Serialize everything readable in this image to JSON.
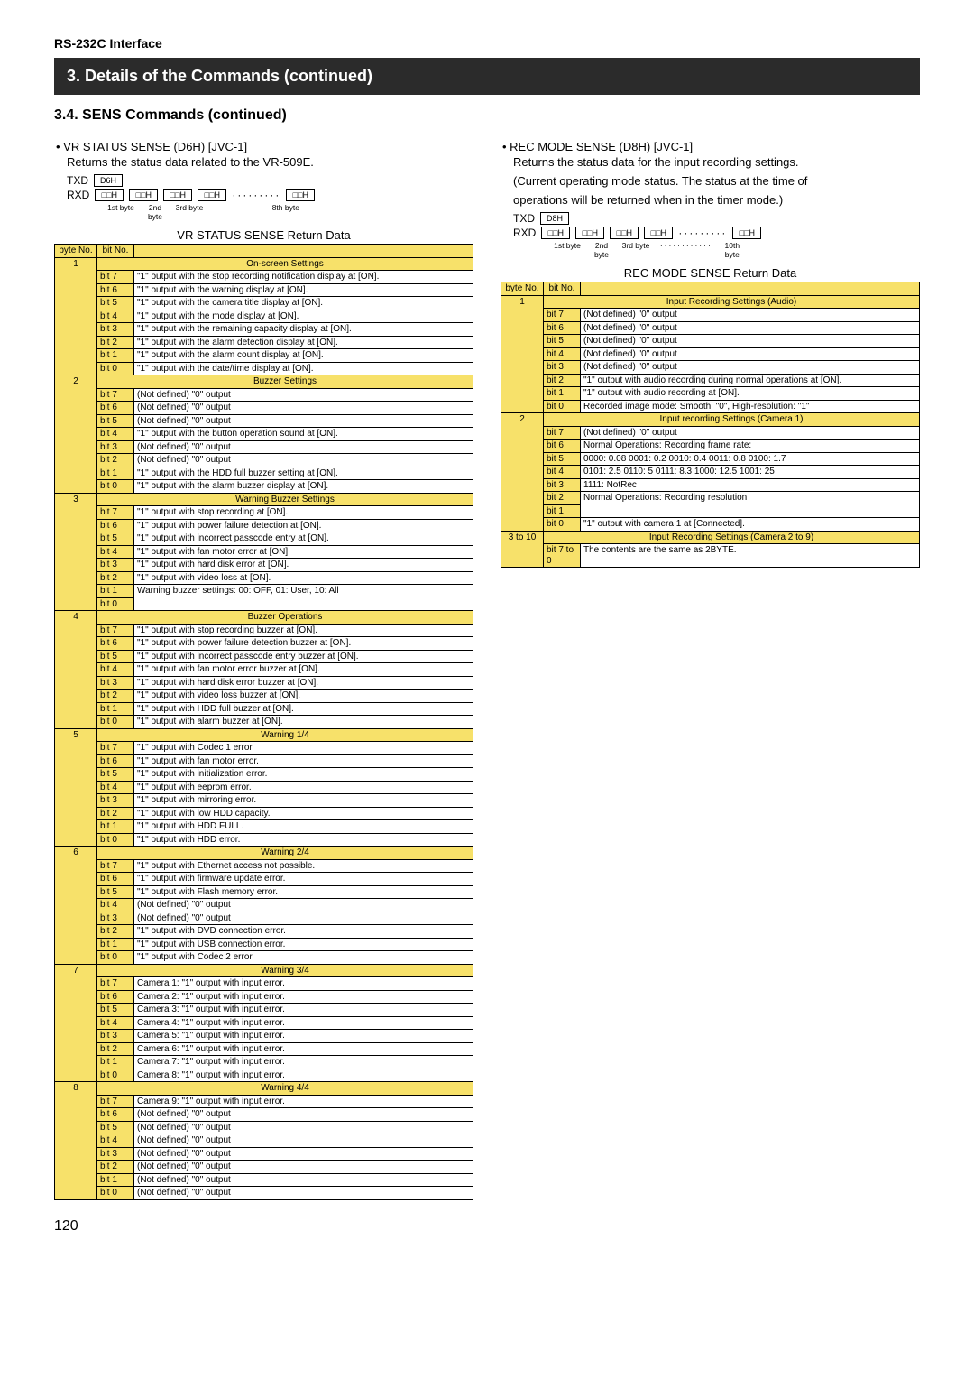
{
  "page_header": "RS-232C Interface",
  "title_band": "3. Details of the Commands (continued)",
  "section_title": "3.4. SENS Commands (continued)",
  "page_number": "120",
  "left": {
    "cmd_title": "• VR STATUS SENSE (D6H) [JVC-1]",
    "cmd_desc": "Returns the status data related to the VR-509E.",
    "txd_label": "TXD",
    "txd_box": "D6H",
    "rxd_label": "RXD",
    "rxd_boxes": [
      "□□H",
      "□□H",
      "□□H",
      "□□H"
    ],
    "rxd_dots": "·········",
    "rxd_last": "□□H",
    "byte_labels": [
      "1st byte",
      "2nd byte",
      "3rd byte"
    ],
    "byte_labels_dots": "·············",
    "byte_labels_last": "8th byte",
    "return_title": "VR STATUS SENSE Return Data",
    "col_headers": [
      "byte No.",
      "bit No.",
      ""
    ],
    "tables": [
      {
        "byte": "1",
        "header": "On-screen Settings",
        "rows": [
          [
            "bit 7",
            "\"1\" output with the stop recording notification display at [ON]."
          ],
          [
            "bit 6",
            "\"1\" output with the warning display at [ON]."
          ],
          [
            "bit 5",
            "\"1\" output with the camera title display at [ON]."
          ],
          [
            "bit 4",
            "\"1\" output with the mode display at [ON]."
          ],
          [
            "bit 3",
            "\"1\" output with the remaining capacity display at [ON]."
          ],
          [
            "bit 2",
            "\"1\" output with the alarm detection display at [ON]."
          ],
          [
            "bit 1",
            "\"1\" output with the alarm count display at [ON]."
          ],
          [
            "bit 0",
            "\"1\" output with the date/time display at [ON]."
          ]
        ]
      },
      {
        "byte": "2",
        "header": "Buzzer Settings",
        "rows": [
          [
            "bit 7",
            "(Not defined) \"0\" output"
          ],
          [
            "bit 6",
            "(Not defined) \"0\" output"
          ],
          [
            "bit 5",
            "(Not defined) \"0\" output"
          ],
          [
            "bit 4",
            "\"1\" output with the button operation sound at [ON]."
          ],
          [
            "bit 3",
            "(Not defined) \"0\" output"
          ],
          [
            "bit 2",
            "(Not defined) \"0\" output"
          ],
          [
            "bit 1",
            "\"1\" output with the HDD full buzzer setting at [ON]."
          ],
          [
            "bit 0",
            "\"1\" output with the alarm buzzer display at [ON]."
          ]
        ]
      },
      {
        "byte": "3",
        "header": "Warning Buzzer Settings",
        "rows": [
          [
            "bit 7",
            "\"1\" output with stop recording at [ON]."
          ],
          [
            "bit 6",
            "\"1\" output with power failure detection at [ON]."
          ],
          [
            "bit 5",
            "\"1\" output with incorrect passcode entry at [ON]."
          ],
          [
            "bit 4",
            "\"1\" output with fan motor error at [ON]."
          ],
          [
            "bit 3",
            "\"1\" output with hard disk error at [ON]."
          ],
          [
            "bit 2",
            "\"1\" output with video loss at [ON]."
          ],
          [
            "bit 1",
            "Warning buzzer settings: 00: OFF, 01: User, 10: All"
          ],
          [
            "bit 0",
            ""
          ]
        ],
        "merge_last": true
      },
      {
        "byte": "4",
        "header": "Buzzer Operations",
        "rows": [
          [
            "bit 7",
            "\"1\" output with stop recording buzzer at [ON]."
          ],
          [
            "bit 6",
            "\"1\" output with power failure detection buzzer at [ON]."
          ],
          [
            "bit 5",
            "\"1\" output with incorrect passcode entry buzzer at [ON]."
          ],
          [
            "bit 4",
            "\"1\" output with fan motor error buzzer at [ON]."
          ],
          [
            "bit 3",
            "\"1\" output with hard disk error buzzer at [ON]."
          ],
          [
            "bit 2",
            "\"1\" output with video loss buzzer at [ON]."
          ],
          [
            "bit 1",
            "\"1\" output with HDD full buzzer at [ON]."
          ],
          [
            "bit 0",
            "\"1\" output with alarm buzzer at [ON]."
          ]
        ]
      },
      {
        "byte": "5",
        "header": "Warning 1/4",
        "rows": [
          [
            "bit 7",
            "\"1\" output with Codec 1 error."
          ],
          [
            "bit 6",
            "\"1\" output with fan motor error."
          ],
          [
            "bit 5",
            "\"1\" output with initialization error."
          ],
          [
            "bit 4",
            "\"1\" output with eeprom error."
          ],
          [
            "bit 3",
            "\"1\" output with mirroring error."
          ],
          [
            "bit 2",
            "\"1\" output with low HDD capacity."
          ],
          [
            "bit 1",
            "\"1\" output with HDD FULL."
          ],
          [
            "bit 0",
            "\"1\" output with HDD error."
          ]
        ]
      },
      {
        "byte": "6",
        "header": "Warning 2/4",
        "rows": [
          [
            "bit 7",
            "\"1\" output with Ethernet access not possible."
          ],
          [
            "bit 6",
            "\"1\" output with firmware update error."
          ],
          [
            "bit 5",
            "\"1\" output with Flash memory error."
          ],
          [
            "bit 4",
            "(Not defined) \"0\" output"
          ],
          [
            "bit 3",
            "(Not defined) \"0\" output"
          ],
          [
            "bit 2",
            "\"1\" output with DVD connection error."
          ],
          [
            "bit 1",
            "\"1\" output with USB connection error."
          ],
          [
            "bit 0",
            "\"1\" output with Codec 2 error."
          ]
        ]
      },
      {
        "byte": "7",
        "header": "Warning 3/4",
        "rows": [
          [
            "bit 7",
            "Camera 1: \"1\" output with input error."
          ],
          [
            "bit 6",
            "Camera 2: \"1\" output with input error."
          ],
          [
            "bit 5",
            "Camera 3: \"1\" output with input error."
          ],
          [
            "bit 4",
            "Camera 4: \"1\" output with input error."
          ],
          [
            "bit 3",
            "Camera 5: \"1\" output with input error."
          ],
          [
            "bit 2",
            "Camera 6: \"1\" output with input error."
          ],
          [
            "bit 1",
            "Camera 7: \"1\" output with input error."
          ],
          [
            "bit 0",
            "Camera 8: \"1\" output with input error."
          ]
        ]
      },
      {
        "byte": "8",
        "header": "Warning 4/4",
        "rows": [
          [
            "bit 7",
            "Camera 9: \"1\" output with input error."
          ],
          [
            "bit 6",
            "(Not defined) \"0\" output"
          ],
          [
            "bit 5",
            "(Not defined) \"0\" output"
          ],
          [
            "bit 4",
            "(Not defined) \"0\" output"
          ],
          [
            "bit 3",
            "(Not defined) \"0\" output"
          ],
          [
            "bit 2",
            "(Not defined) \"0\" output"
          ],
          [
            "bit 1",
            "(Not defined) \"0\" output"
          ],
          [
            "bit 0",
            "(Not defined) \"0\" output"
          ]
        ]
      }
    ]
  },
  "right": {
    "cmd_title": "• REC MODE SENSE (D8H) [JVC-1]",
    "cmd_desc1": "Returns the status data for the input recording settings.",
    "cmd_desc2": "(Current operating mode status. The status at the time of",
    "cmd_desc3": "operations will be returned when in the timer mode.)",
    "txd_label": "TXD",
    "txd_box": "D8H",
    "rxd_label": "RXD",
    "rxd_boxes": [
      "□□H",
      "□□H",
      "□□H",
      "□□H"
    ],
    "rxd_dots": "·········",
    "rxd_last": "□□H",
    "byte_labels": [
      "1st byte",
      "2nd byte",
      "3rd byte"
    ],
    "byte_labels_dots": "·············",
    "byte_labels_last": "10th byte",
    "return_title": "REC MODE SENSE Return Data",
    "col_headers": [
      "byte No.",
      "bit No.",
      ""
    ],
    "tables": [
      {
        "byte": "1",
        "header": "Input Recording Settings (Audio)",
        "rows": [
          [
            "bit 7",
            "(Not defined) \"0\" output"
          ],
          [
            "bit 6",
            "(Not defined) \"0\" output"
          ],
          [
            "bit 5",
            "(Not defined) \"0\" output"
          ],
          [
            "bit 4",
            "(Not defined) \"0\" output"
          ],
          [
            "bit 3",
            "(Not defined) \"0\" output"
          ],
          [
            "bit 2",
            "\"1\" output with audio recording during normal operations at [ON]."
          ],
          [
            "bit 1",
            "\"1\" output with audio recording at [ON]."
          ],
          [
            "bit 0",
            "Recorded image mode: Smooth: \"0\", High-resolution: \"1\""
          ]
        ]
      },
      {
        "byte": "2",
        "header": "Input recording Settings (Camera 1)",
        "rows_custom": [
          {
            "bit": "bit 7",
            "desc": "(Not defined) \"0\" output"
          },
          {
            "bit": "bit 6",
            "desc": "Normal Operations: Recording frame rate:"
          },
          {
            "bit": "bit 5",
            "desc": "0000: 0.08   0001: 0.2   0010: 0.4   0011: 0.8   0100: 1.7",
            "merge_up": true
          },
          {
            "bit": "bit 4",
            "desc": "0101: 2.5   0110: 5   0111: 8.3   1000: 12.5   1001: 25",
            "merge_up": true
          },
          {
            "bit": "bit 3",
            "desc": "1111: NotRec",
            "merge_up": true
          },
          {
            "bit": "bit 2",
            "desc": "Normal Operations: Recording resolution",
            "rowspan": 2
          },
          {
            "bit": "bit 1",
            "desc": "",
            "skip_desc": true
          },
          {
            "bit": "bit 0",
            "desc": "\"1\" output with camera 1 at [Connected]."
          }
        ]
      },
      {
        "byte": "3 to 10",
        "header": "Input Recording Settings (Camera 2 to 9)",
        "rows": [
          [
            "bit 7 to 0",
            "The contents are the same as 2BYTE."
          ]
        ]
      }
    ]
  }
}
